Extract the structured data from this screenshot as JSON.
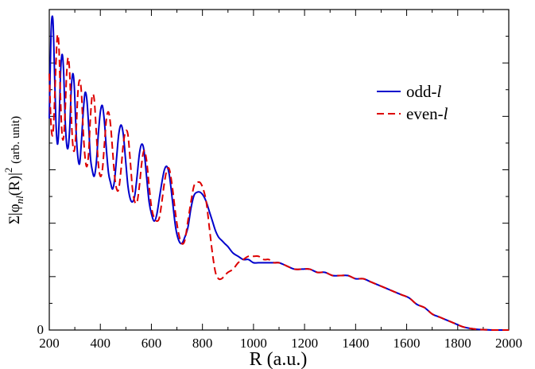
{
  "chart_data": {
    "type": "line",
    "xlabel": "R (a.u.)",
    "ylabel_main": "Σ|φ",
    "ylabel_sub": "nl",
    "ylabel_tail": "(R)|",
    "ylabel_exp": "2",
    "ylabel_unit": "(arb. unit)",
    "xlim": [
      200,
      2000
    ],
    "ylim": [
      0,
      1
    ],
    "x_ticks": [
      200,
      400,
      600,
      800,
      1000,
      1200,
      1400,
      1600,
      1800,
      2000
    ],
    "x_tick_labels": [
      "200",
      "400",
      "600",
      "800",
      "1000",
      "1200",
      "1400",
      "1600",
      "1800",
      "2000"
    ],
    "y_tick_labels": [
      "0"
    ],
    "grid": false,
    "legend_position": "top-right",
    "series": [
      {
        "name": "odd-l",
        "label_prefix": "odd-",
        "label_italic": "l",
        "color": "#0000cc",
        "dash": "solid",
        "x": [
          200,
          207,
          214,
          220,
          226,
          232,
          238,
          244,
          250,
          256,
          262,
          268,
          274,
          280,
          286,
          292,
          298,
          305,
          312,
          319,
          326,
          333,
          340,
          347,
          354,
          361,
          368,
          376,
          384,
          392,
          400,
          408,
          416,
          424,
          432,
          440,
          448,
          456,
          464,
          472,
          481,
          490,
          499,
          508,
          517,
          526,
          535,
          544,
          553,
          562,
          571,
          581,
          591,
          601,
          611,
          621,
          631,
          641,
          651,
          661,
          671,
          683,
          695,
          707,
          719,
          731,
          743,
          755,
          767,
          779,
          791,
          803,
          815,
          827,
          839,
          851,
          863,
          875,
          887,
          900,
          920,
          940,
          960,
          980,
          1000,
          1020,
          1040,
          1060,
          1080,
          1100,
          1130,
          1160,
          1190,
          1220,
          1250,
          1280,
          1310,
          1340,
          1370,
          1400,
          1430,
          1460,
          1490,
          1520,
          1550,
          1580,
          1610,
          1640,
          1670,
          1700,
          1730,
          1760,
          1790,
          1820,
          1850,
          1880,
          1910,
          1940,
          1970,
          2000
        ],
        "y": [
          0.66,
          0.93,
          0.97,
          0.82,
          0.65,
          0.58,
          0.64,
          0.8,
          0.86,
          0.81,
          0.66,
          0.58,
          0.57,
          0.63,
          0.75,
          0.8,
          0.76,
          0.62,
          0.54,
          0.52,
          0.59,
          0.68,
          0.74,
          0.72,
          0.64,
          0.54,
          0.5,
          0.48,
          0.52,
          0.61,
          0.68,
          0.7,
          0.65,
          0.56,
          0.49,
          0.46,
          0.44,
          0.47,
          0.54,
          0.61,
          0.64,
          0.61,
          0.53,
          0.45,
          0.41,
          0.4,
          0.42,
          0.48,
          0.55,
          0.58,
          0.56,
          0.48,
          0.4,
          0.36,
          0.34,
          0.36,
          0.41,
          0.46,
          0.5,
          0.51,
          0.48,
          0.4,
          0.32,
          0.28,
          0.27,
          0.29,
          0.32,
          0.38,
          0.42,
          0.43,
          0.43,
          0.42,
          0.4,
          0.37,
          0.34,
          0.31,
          0.29,
          0.28,
          0.27,
          0.26,
          0.24,
          0.23,
          0.22,
          0.22,
          0.21,
          0.21,
          0.21,
          0.21,
          0.21,
          0.21,
          0.2,
          0.19,
          0.19,
          0.19,
          0.18,
          0.18,
          0.17,
          0.17,
          0.17,
          0.16,
          0.16,
          0.15,
          0.14,
          0.13,
          0.12,
          0.11,
          0.1,
          0.08,
          0.07,
          0.05,
          0.04,
          0.03,
          0.02,
          0.01,
          0.005,
          0.002,
          0.001,
          0.0,
          0.0,
          0.0
        ]
      },
      {
        "name": "even-l",
        "label_prefix": "even-",
        "label_italic": "l",
        "color": "#dd0000",
        "dash": "dashed",
        "x": [
          200,
          207,
          214,
          220,
          226,
          232,
          238,
          244,
          250,
          256,
          262,
          268,
          274,
          280,
          286,
          292,
          298,
          305,
          312,
          319,
          326,
          333,
          340,
          347,
          354,
          361,
          368,
          376,
          384,
          392,
          400,
          408,
          416,
          424,
          432,
          440,
          448,
          456,
          464,
          472,
          481,
          490,
          499,
          508,
          517,
          526,
          535,
          544,
          553,
          562,
          571,
          581,
          591,
          601,
          611,
          621,
          631,
          641,
          651,
          661,
          671,
          683,
          695,
          707,
          719,
          731,
          743,
          755,
          767,
          779,
          791,
          803,
          815,
          827,
          839,
          851,
          863,
          875,
          887,
          900,
          920,
          940,
          960,
          980,
          1000,
          1020,
          1040,
          1060,
          1080,
          1100,
          1130,
          1160,
          1190,
          1220,
          1250,
          1280,
          1310,
          1340,
          1370,
          1400,
          1430,
          1460,
          1490,
          1520,
          1550,
          1580,
          1610,
          1640,
          1670,
          1700,
          1730,
          1760,
          1790,
          1820,
          1850,
          1880,
          1910,
          1940,
          1970,
          2000
        ],
        "y": [
          0.8,
          0.64,
          0.61,
          0.7,
          0.83,
          0.92,
          0.88,
          0.72,
          0.61,
          0.6,
          0.68,
          0.8,
          0.85,
          0.8,
          0.67,
          0.58,
          0.56,
          0.62,
          0.74,
          0.78,
          0.74,
          0.62,
          0.54,
          0.51,
          0.55,
          0.66,
          0.73,
          0.72,
          0.62,
          0.52,
          0.48,
          0.5,
          0.58,
          0.66,
          0.68,
          0.64,
          0.56,
          0.48,
          0.44,
          0.44,
          0.5,
          0.58,
          0.62,
          0.61,
          0.53,
          0.44,
          0.4,
          0.4,
          0.45,
          0.52,
          0.56,
          0.53,
          0.45,
          0.38,
          0.35,
          0.34,
          0.35,
          0.4,
          0.46,
          0.5,
          0.5,
          0.44,
          0.36,
          0.3,
          0.27,
          0.28,
          0.34,
          0.4,
          0.45,
          0.46,
          0.46,
          0.44,
          0.4,
          0.32,
          0.24,
          0.18,
          0.16,
          0.16,
          0.17,
          0.18,
          0.19,
          0.21,
          0.22,
          0.23,
          0.23,
          0.23,
          0.22,
          0.22,
          0.21,
          0.21,
          0.2,
          0.19,
          0.19,
          0.19,
          0.18,
          0.18,
          0.17,
          0.17,
          0.17,
          0.16,
          0.16,
          0.15,
          0.14,
          0.13,
          0.12,
          0.11,
          0.1,
          0.08,
          0.07,
          0.05,
          0.04,
          0.03,
          0.02,
          0.01,
          0.005,
          0.002,
          0.001,
          0.0,
          0.0,
          0.0
        ]
      }
    ]
  }
}
